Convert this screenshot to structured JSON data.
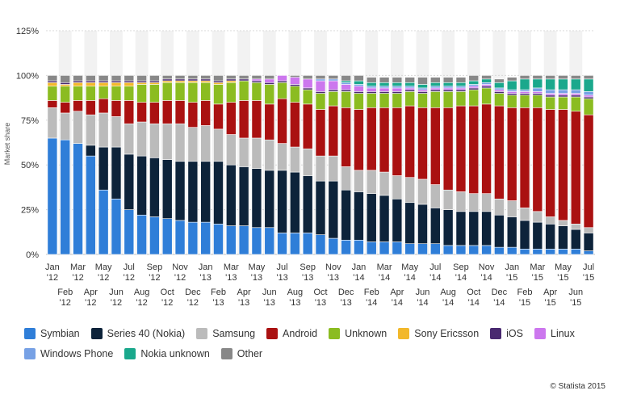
{
  "chart_data": {
    "type": "bar",
    "stacked": true,
    "ylabel": "Market share",
    "ylim": [
      0,
      125
    ],
    "yticks": [
      "0%",
      "25%",
      "50%",
      "75%",
      "100%",
      "125%"
    ],
    "categories": [
      "Jan '12",
      "Feb '12",
      "Mar '12",
      "Apr '12",
      "May '12",
      "Jun '12",
      "Jul '12",
      "Aug '12",
      "Sep '12",
      "Oct '12",
      "Nov '12",
      "Dec '12",
      "Jan '13",
      "Feb '13",
      "Mar '13",
      "Apr '13",
      "May '13",
      "Jun '13",
      "Jul '13",
      "Aug '13",
      "Sep '13",
      "Oct '13",
      "Nov '13",
      "Dec '13",
      "Jan '14",
      "Feb '14",
      "Mar '14",
      "Apr '14",
      "May '14",
      "Jun '14",
      "Jul '14",
      "Aug '14",
      "Sep '14",
      "Oct '14",
      "Nov '14",
      "Dec '14",
      "Jan '15",
      "Feb '15",
      "Mar '15",
      "Apr '15",
      "May '15",
      "Jun '15",
      "Jul '15"
    ],
    "x_labels_top": [
      "Jan",
      "Mar",
      "May",
      "Jul",
      "Sep",
      "Nov",
      "Jan",
      "Mar",
      "May",
      "Jul",
      "Sep",
      "Nov",
      "Jan",
      "Mar",
      "May",
      "Jul",
      "Sep",
      "Nov",
      "Jan",
      "Mar",
      "May",
      "Jul"
    ],
    "x_years_top": [
      "'12",
      "'12",
      "'12",
      "'12",
      "'12",
      "'12",
      "'13",
      "'13",
      "'13",
      "'13",
      "'13",
      "'13",
      "'14",
      "'14",
      "'14",
      "'14",
      "'14",
      "'14",
      "'15",
      "'15",
      "'15",
      "'15"
    ],
    "x_labels_bottom": [
      "Feb",
      "Apr",
      "Jun",
      "Aug",
      "Oct",
      "Dec",
      "Feb",
      "Apr",
      "Jun",
      "Aug",
      "Oct",
      "Dec",
      "Feb",
      "Apr",
      "Jun",
      "Aug",
      "Oct",
      "Dec",
      "Feb",
      "Apr",
      "Jun"
    ],
    "x_years_bottom": [
      "'12",
      "'12",
      "'12",
      "'12",
      "'12",
      "'12",
      "'13",
      "'13",
      "'13",
      "'13",
      "'13",
      "'13",
      "'14",
      "'14",
      "'14",
      "'14",
      "'14",
      "'14",
      "'15",
      "'15",
      "'15"
    ],
    "grid": true,
    "legend_position": "bottom",
    "series": [
      {
        "name": "Symbian",
        "color": "#2f7ed8",
        "values": [
          65,
          64,
          62,
          55,
          36,
          31,
          25,
          22,
          21,
          20,
          19,
          18,
          18,
          17,
          16,
          16,
          15,
          15,
          12,
          12,
          12,
          11,
          9,
          8,
          8,
          7,
          7,
          7,
          6,
          6,
          6,
          5,
          5,
          5,
          5,
          4,
          4,
          3,
          3,
          3,
          3,
          3,
          2
        ]
      },
      {
        "name": "Series 40 (Nokia)",
        "color": "#0d233a",
        "values": [
          0,
          0,
          0,
          6,
          24,
          29,
          31,
          33,
          33,
          33,
          33,
          34,
          34,
          35,
          34,
          33,
          33,
          32,
          35,
          34,
          32,
          30,
          32,
          28,
          27,
          27,
          26,
          24,
          23,
          22,
          20,
          20,
          19,
          19,
          19,
          18,
          17,
          16,
          15,
          14,
          13,
          11,
          10
        ]
      },
      {
        "name": "Samsung",
        "color": "#bbbbbb",
        "values": [
          17,
          15,
          18,
          17,
          19,
          17,
          17,
          19,
          19,
          20,
          21,
          19,
          20,
          18,
          17,
          16,
          17,
          17,
          15,
          14,
          15,
          14,
          14,
          13,
          12,
          13,
          13,
          13,
          14,
          14,
          13,
          11,
          11,
          10,
          10,
          9,
          9,
          7,
          6,
          4,
          3,
          3,
          3
        ]
      },
      {
        "name": "Android",
        "color": "#aa1111",
        "values": [
          4,
          6,
          6,
          8,
          8,
          9,
          13,
          11,
          12,
          13,
          13,
          14,
          14,
          14,
          18,
          21,
          21,
          20,
          25,
          25,
          25,
          26,
          28,
          33,
          34,
          35,
          36,
          38,
          40,
          40,
          43,
          46,
          48,
          49,
          50,
          52,
          52,
          56,
          58,
          60,
          62,
          63,
          63
        ]
      },
      {
        "name": "Unknown",
        "color": "#8bbc21",
        "values": [
          8,
          9,
          8,
          8,
          7,
          8,
          8,
          10,
          10,
          10,
          10,
          11,
          10,
          11,
          11,
          11,
          10,
          11,
          9,
          9,
          8,
          9,
          8,
          9,
          9,
          8,
          8,
          8,
          8,
          8,
          9,
          9,
          8,
          9,
          9,
          7,
          7,
          7,
          7,
          7,
          7,
          8,
          9
        ]
      },
      {
        "name": "Sony Ericsson",
        "color": "#f2b82b",
        "values": [
          2,
          1,
          2,
          2,
          2,
          2,
          2,
          1,
          1,
          1,
          1,
          1,
          1,
          1,
          1,
          0,
          0,
          0,
          0,
          0,
          0,
          0,
          0,
          0,
          0,
          0,
          0,
          0,
          0,
          0,
          0,
          0,
          0,
          0,
          0,
          0,
          0,
          0,
          0,
          0,
          0,
          0,
          0
        ]
      },
      {
        "name": "iOS",
        "color": "#492970",
        "values": [
          1,
          1,
          1,
          1,
          1,
          1,
          1,
          1,
          1,
          1,
          1,
          1,
          1,
          1,
          1,
          1,
          1,
          1,
          1,
          1,
          1,
          1,
          1,
          1,
          1,
          1,
          1,
          1,
          1,
          1,
          1,
          1,
          1,
          1,
          1,
          1,
          1,
          1,
          1,
          1,
          1,
          1,
          1
        ]
      },
      {
        "name": "Linux",
        "color": "#cc77ee",
        "values": [
          0,
          0,
          0,
          0,
          0,
          0,
          0,
          0,
          0,
          0,
          0,
          0,
          0,
          0,
          0,
          0,
          1,
          2,
          3,
          4,
          5,
          6,
          5,
          3,
          3,
          2,
          2,
          2,
          1,
          1,
          1,
          1,
          1,
          1,
          1,
          1,
          1,
          1,
          1,
          1,
          1,
          1,
          1
        ]
      },
      {
        "name": "Windows Phone",
        "color": "#77a1e5",
        "values": [
          0,
          0,
          0,
          0,
          0,
          0,
          0,
          0,
          0,
          0,
          0,
          0,
          0,
          0,
          0,
          0,
          0,
          0,
          0,
          0,
          0,
          1,
          1,
          1,
          1,
          1,
          1,
          1,
          1,
          1,
          1,
          1,
          1,
          1,
          1,
          1,
          1,
          1,
          2,
          2,
          2,
          2,
          2
        ]
      },
      {
        "name": "Nokia unknown",
        "color": "#1aa88c",
        "values": [
          0,
          0,
          0,
          0,
          0,
          0,
          0,
          0,
          0,
          0,
          0,
          0,
          0,
          0,
          0,
          0,
          0,
          0,
          0,
          0,
          0,
          0,
          0,
          1,
          2,
          2,
          2,
          2,
          2,
          2,
          2,
          2,
          2,
          2,
          2,
          3,
          5,
          6,
          5,
          6,
          6,
          6,
          7
        ]
      },
      {
        "name": "Other",
        "color": "#888888",
        "values": [
          3,
          4,
          3,
          3,
          3,
          3,
          3,
          3,
          3,
          2,
          2,
          2,
          2,
          3,
          2,
          2,
          2,
          2,
          0,
          1,
          2,
          2,
          2,
          3,
          3,
          3,
          3,
          3,
          3,
          4,
          3,
          3,
          3,
          3,
          2,
          2,
          2,
          2,
          2,
          2,
          2,
          2,
          2
        ]
      }
    ]
  },
  "legend": {
    "row1": [
      "Symbian",
      "Series 40 (Nokia)",
      "Samsung",
      "Android",
      "Unknown",
      "Sony Ericsson",
      "iOS",
      "Linux"
    ],
    "row2": [
      "Windows Phone",
      "Nokia unknown",
      "Other"
    ]
  },
  "credit": "© Statista 2015"
}
